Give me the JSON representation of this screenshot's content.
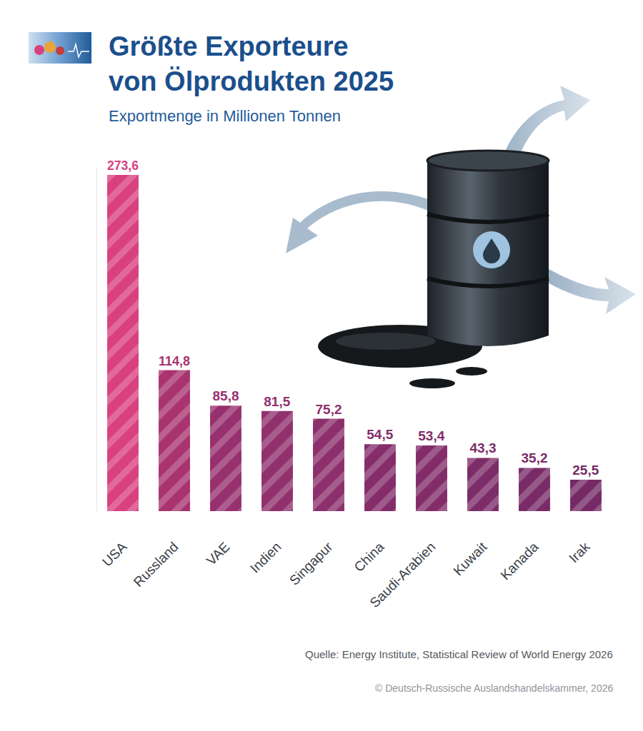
{
  "chart_data": {
    "type": "bar",
    "title": "Größte Exporteure von Ölprodukten 2025",
    "subtitle": "Exportmenge in Millionen Tonnen",
    "categories": [
      "USA",
      "Russland",
      "VAE",
      "Indien",
      "Singapur",
      "China",
      "Saudi-Arabien",
      "Kuwait",
      "Kanada",
      "Irak"
    ],
    "values": [
      273.6,
      114.8,
      85.8,
      81.5,
      75.2,
      54.5,
      53.4,
      43.3,
      35.2,
      25.5
    ],
    "value_labels": [
      "273,6",
      "114,8",
      "85,8",
      "81,5",
      "75,2",
      "54,5",
      "53,4",
      "43,3",
      "35,2",
      "25,5"
    ],
    "colors": [
      "#d9407f",
      "#a8336f",
      "#97306e",
      "#90306d",
      "#8c2f6c",
      "#842d6a",
      "#822d69",
      "#7c2c68",
      "#792b67",
      "#752a66"
    ],
    "ylim": [
      0,
      280
    ],
    "yticks": [],
    "grid": false,
    "data_labels": true,
    "tick_labels": "x",
    "annotations": [
      "Quelle: Energy Institute, Statistical Review of World Energy 2026",
      "© Deutsch-Russische Auslandshandelskammer, 2026"
    ]
  }
}
